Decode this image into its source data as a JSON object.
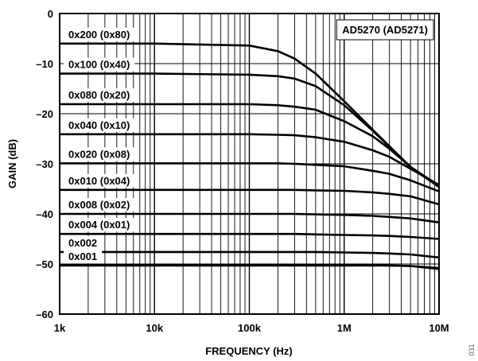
{
  "chart_data": {
    "type": "line",
    "title": "",
    "legend_text": "AD5270 (AD5271)",
    "xlabel": "FREQUENCY (Hz)",
    "ylabel": "GAIN (dB)",
    "xscale": "log",
    "xlim": [
      1000,
      10000000
    ],
    "ylim": [
      -60,
      0
    ],
    "x_ticks": [
      {
        "value": 1000,
        "label": "1k"
      },
      {
        "value": 10000,
        "label": "10k"
      },
      {
        "value": 100000,
        "label": "100k"
      },
      {
        "value": 1000000,
        "label": "1M"
      },
      {
        "value": 10000000,
        "label": "10M"
      }
    ],
    "y_ticks": [
      {
        "value": 0,
        "label": "0"
      },
      {
        "value": -10,
        "label": "–10"
      },
      {
        "value": -20,
        "label": "–20"
      },
      {
        "value": -30,
        "label": "–30"
      },
      {
        "value": -40,
        "label": "–40"
      },
      {
        "value": -50,
        "label": "–50"
      },
      {
        "value": -60,
        "label": "–60"
      }
    ],
    "grid": true,
    "x": [
      1000,
      10000,
      100000,
      200000,
      300000,
      500000,
      1000000,
      2000000,
      3000000,
      5000000,
      10000000
    ],
    "series": [
      {
        "name": "0x200 (0x80)",
        "values": [
          -6.0,
          -6.0,
          -6.4,
          -7.5,
          -9.0,
          -12.0,
          -17.5,
          -23.2,
          -26.5,
          -30.6,
          -34.6
        ]
      },
      {
        "name": "0x100 (0x40)",
        "values": [
          -12.0,
          -12.0,
          -12.2,
          -12.5,
          -13.0,
          -14.5,
          -18.3,
          -23.4,
          -26.6,
          -30.7,
          -34.6
        ]
      },
      {
        "name": "0x080 (0x20)",
        "values": [
          -18.1,
          -18.1,
          -18.1,
          -18.3,
          -18.6,
          -19.2,
          -21.5,
          -24.5,
          -27.0,
          -30.6,
          -34.4
        ]
      },
      {
        "name": "0x040 (0x10)",
        "values": [
          -24.1,
          -24.1,
          -24.1,
          -24.2,
          -24.3,
          -24.7,
          -25.6,
          -27.3,
          -28.6,
          -31.0,
          -34.2
        ]
      },
      {
        "name": "0x020 (0x08)",
        "values": [
          -29.9,
          -29.9,
          -29.9,
          -29.9,
          -30.0,
          -30.2,
          -30.5,
          -31.4,
          -32.0,
          -33.3,
          -35.5
        ]
      },
      {
        "name": "0x010 (0x04)",
        "values": [
          -35.2,
          -35.2,
          -35.2,
          -35.2,
          -35.2,
          -35.3,
          -35.4,
          -35.7,
          -36.0,
          -36.5,
          -38.1
        ]
      },
      {
        "name": "0x008 (0x02)",
        "values": [
          -40.0,
          -40.0,
          -40.0,
          -40.0,
          -40.0,
          -40.1,
          -40.2,
          -40.4,
          -40.6,
          -40.9,
          -41.7
        ]
      },
      {
        "name": "0x004 (0x01)",
        "values": [
          -44.0,
          -44.0,
          -44.0,
          -44.0,
          -44.0,
          -44.1,
          -44.2,
          -44.3,
          -44.4,
          -44.6,
          -45.0
        ]
      },
      {
        "name": "0x002",
        "values": [
          -47.6,
          -47.6,
          -47.6,
          -47.6,
          -47.6,
          -47.6,
          -47.7,
          -47.8,
          -47.9,
          -48.1,
          -48.7
        ]
      },
      {
        "name": "",
        "values": [
          -50.2,
          -50.2,
          -50.2,
          -50.2,
          -50.2,
          -50.2,
          -50.2,
          -50.2,
          -50.3,
          -50.4,
          -50.8
        ]
      },
      {
        "name": "0x001",
        "values": [
          -50.3,
          -50.3,
          -50.3,
          -50.3,
          -50.3,
          -50.3,
          -50.3,
          -50.3,
          -50.3,
          -50.4,
          -51.0
        ]
      }
    ]
  },
  "figure_id": "031",
  "colors": {
    "line": "#000000",
    "grid": "#000000",
    "background": "#ffffff"
  }
}
